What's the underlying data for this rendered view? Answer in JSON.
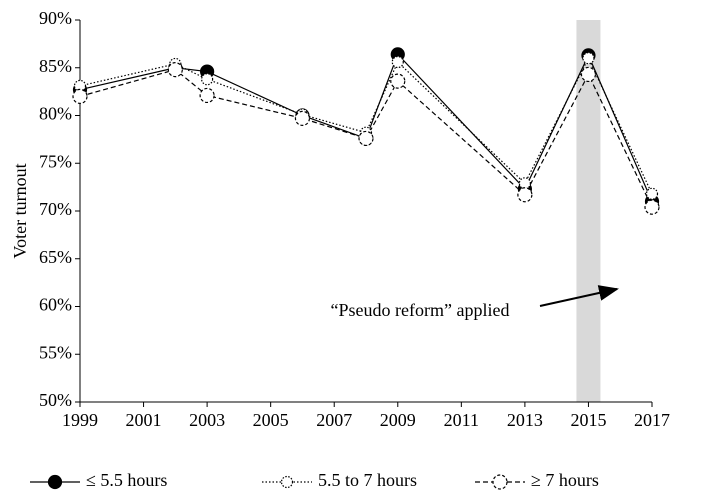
{
  "chart_data": {
    "type": "line",
    "y_label": "Voter turnout",
    "annotation": "“Pseudo reform” applied",
    "highlight": {
      "x": 2015
    },
    "x": [
      1999,
      2002,
      2003,
      2006,
      2008,
      2009,
      2013,
      2015,
      2017
    ],
    "series": [
      {
        "name": "≤ 5.5 hours",
        "color": "#000000",
        "marker": "filled",
        "dash": "solid",
        "values": [
          82.7,
          85.0,
          84.6,
          80.0,
          77.6,
          86.4,
          72.3,
          86.3,
          71.0
        ]
      },
      {
        "name": "5.5 to 7 hours",
        "color": "#000000",
        "marker": "small-open",
        "dash": "dotted",
        "values": [
          83.1,
          85.4,
          83.8,
          80.1,
          78.2,
          85.6,
          72.9,
          86.0,
          71.8
        ]
      },
      {
        "name": "≥ 7 hours",
        "color": "#000000",
        "marker": "open",
        "dash": "dashed",
        "values": [
          82.0,
          84.8,
          82.1,
          79.7,
          77.6,
          83.6,
          71.7,
          84.3,
          70.4
        ]
      }
    ],
    "xlim": [
      1999,
      2017
    ],
    "xticks": [
      1999,
      2001,
      2003,
      2005,
      2007,
      2009,
      2011,
      2013,
      2015,
      2017
    ],
    "ylim": [
      50,
      90
    ],
    "yticks": [
      {
        "value": 50,
        "label": "50%"
      },
      {
        "value": 55,
        "label": "55%"
      },
      {
        "value": 60,
        "label": "60%"
      },
      {
        "value": 65,
        "label": "65%"
      },
      {
        "value": 70,
        "label": "70%"
      },
      {
        "value": 75,
        "label": "75%"
      },
      {
        "value": 80,
        "label": "80%"
      },
      {
        "value": 85,
        "label": "85%"
      },
      {
        "value": 90,
        "label": "90%"
      }
    ],
    "grid": false
  }
}
